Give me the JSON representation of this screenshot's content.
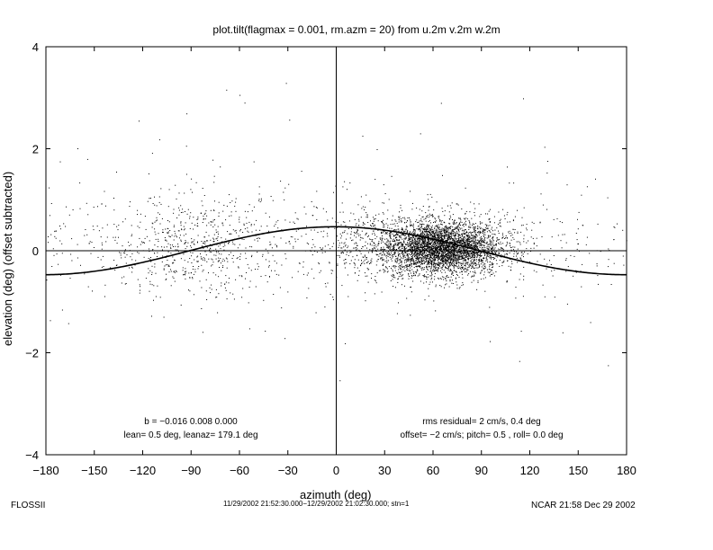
{
  "title": "plot.tilt(flagmax = 0.001, rm.azm = 20) from u.2m v.2m w.2m",
  "annotations": {
    "left_line1": "b = −0.016  0.008  0.000",
    "left_line2": "lean= 0.5 deg, leanaz= 179.1 deg",
    "right_line1": "rms residual= 2 cm/s, 0.4 deg",
    "right_line2": "offset= −2 cm/s; pitch= 0.5 , roll= 0.0 deg"
  },
  "footer": {
    "left": "FLOSSII",
    "center": "11/29/2002 21:52:30.000−12/29/2002 21:02:30.000; stn=1",
    "right": "NCAR 21:58 Dec 29 2002"
  },
  "chart_data": {
    "type": "scatter",
    "xlabel": "azimuth (deg)",
    "ylabel": "elevation (deg)  (offset subtracted)",
    "xlim": [
      -180,
      180
    ],
    "ylim": [
      -4,
      4
    ],
    "xticks": [
      -180,
      -150,
      -120,
      -90,
      -60,
      -30,
      0,
      30,
      60,
      90,
      120,
      150,
      180
    ],
    "xtick_labels": [
      "−180",
      "−150",
      "−120",
      "−90",
      "−60",
      "−30",
      "0",
      "30",
      "60",
      "90",
      "120",
      "150",
      "180"
    ],
    "yticks": [
      -4,
      -2,
      0,
      2,
      4
    ],
    "ytick_labels": [
      "−4",
      "−2",
      "0",
      "2",
      "4"
    ],
    "grid": false,
    "reference_lines": {
      "x": 0,
      "y": 0
    },
    "fit_curve": {
      "amplitude": 0.47,
      "peak_azimuth": -0.9,
      "form": "amplitude*cos(azimuth - peak_azimuth)"
    },
    "point_clusters": [
      {
        "name": "dense",
        "x_center": 65,
        "x_spread": 18,
        "y_center": 0.05,
        "y_spread": 0.25,
        "count": 3400
      },
      {
        "name": "medium",
        "x_center": 50,
        "x_spread": 35,
        "y_center": 0.15,
        "y_spread": 0.35,
        "count": 900
      },
      {
        "name": "left",
        "x_center": -85,
        "x_spread": 28,
        "y_center": 0.1,
        "y_spread": 0.5,
        "count": 550
      },
      {
        "name": "sparse",
        "x_min": -180,
        "x_max": 180,
        "y_center": 0.1,
        "y_spread": 0.55,
        "count": 450
      },
      {
        "name": "outliers",
        "x_min": -180,
        "x_max": 180,
        "y_center": 0.5,
        "y_spread": 1.5,
        "count": 120
      }
    ]
  }
}
